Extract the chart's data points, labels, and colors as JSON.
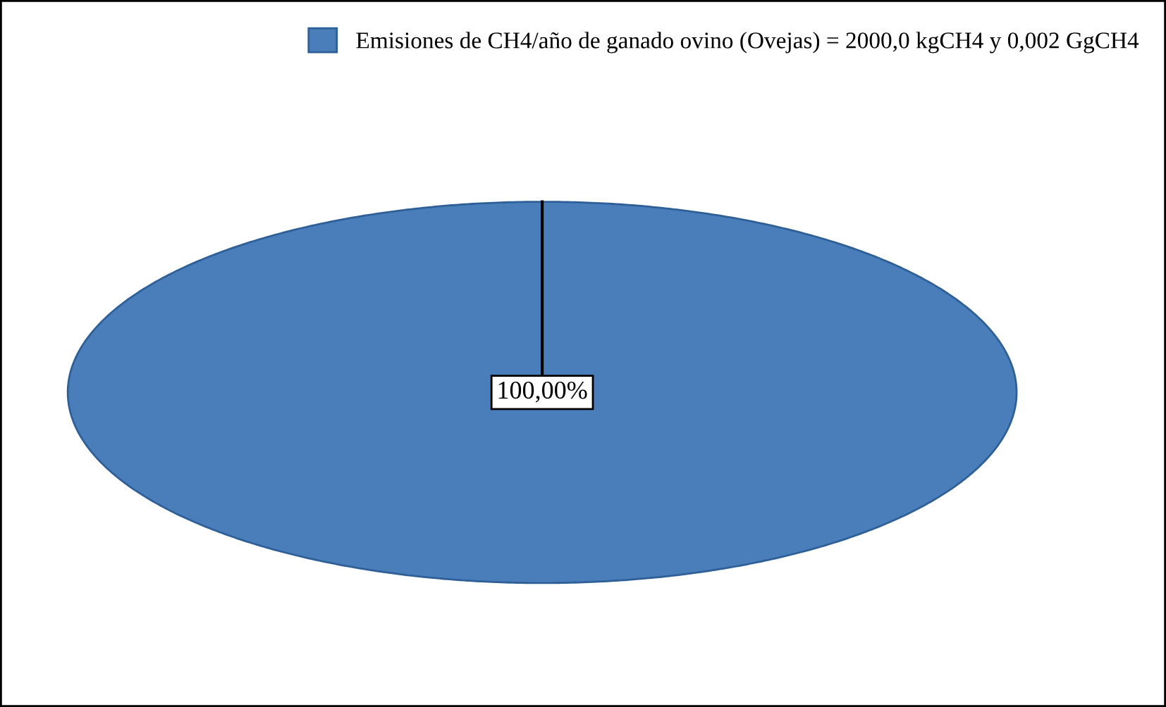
{
  "chart_data": {
    "type": "pie",
    "categories": [
      "Emisiones de CH4/año de ganado ovino (Ovejas) = 2000,0 kgCH4 y 0,002 GgCH4"
    ],
    "values": [
      100
    ],
    "colors": [
      "#4a7ebb"
    ],
    "value_labels": [
      "100,00%"
    ],
    "legend": "top right"
  }
}
